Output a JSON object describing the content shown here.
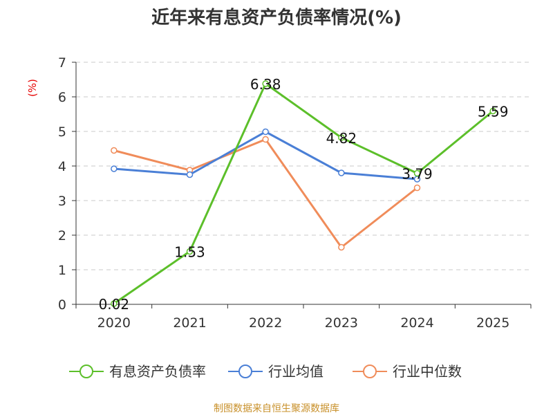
{
  "chart_data": {
    "type": "line",
    "title": "近年来有息资产负债率情况(%)",
    "ylabel": "(%)",
    "xlabel": "",
    "categories": [
      "2020",
      "2021",
      "2022",
      "2023",
      "2024",
      "2025"
    ],
    "ylim": [
      0,
      7
    ],
    "yticks": [
      "0",
      "1",
      "2",
      "3",
      "4",
      "5",
      "6",
      "7"
    ],
    "grid": true,
    "legend_position": "bottom",
    "series": [
      {
        "name": "有息资产负债率",
        "color": "#5cbf2a",
        "values": [
          0.02,
          1.53,
          6.38,
          4.82,
          3.79,
          5.59
        ],
        "labels": [
          "0.02",
          "1.53",
          "6.38",
          "4.82",
          "3.79",
          "5.59"
        ]
      },
      {
        "name": "行业均值",
        "color": "#4a7fd6",
        "values": [
          3.92,
          3.75,
          4.99,
          3.8,
          3.62,
          null
        ]
      },
      {
        "name": "行业中位数",
        "color": "#f08c5a",
        "values": [
          4.45,
          3.88,
          4.77,
          1.65,
          3.37,
          null
        ]
      }
    ],
    "source": "制图数据来自恒生聚源数据库"
  }
}
